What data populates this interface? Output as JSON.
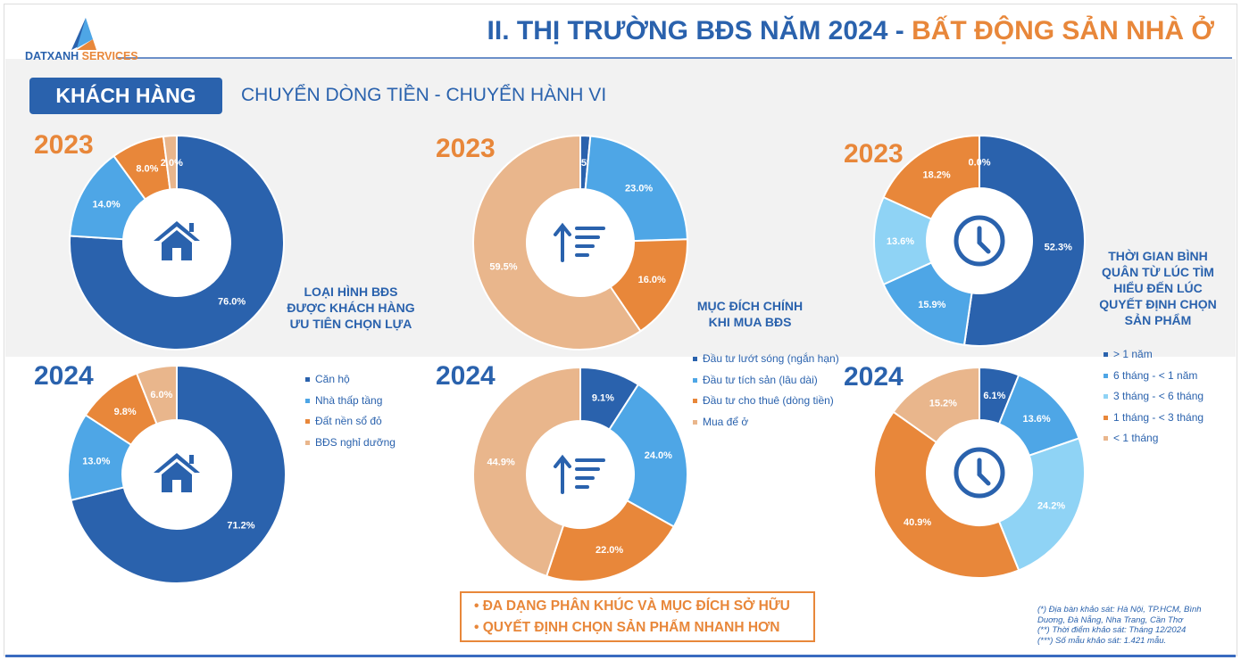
{
  "header": {
    "title_main": "II. THỊ TRƯỜNG BĐS NĂM 2024 - ",
    "title_accent": "BẤT ĐỘNG SẢN NHÀ Ở",
    "logo_part1": "DATXANH",
    "logo_part2": " SERVICES"
  },
  "section": {
    "button": "KHÁCH HÀNG",
    "subtitle": "CHUYỂN DÒNG TIỀN - CHUYỂN HÀNH VI"
  },
  "colors": {
    "dark_blue": "#2a62ad",
    "mid_blue": "#4ea6e6",
    "light_blue": "#8fd3f5",
    "orange": "#e8873a",
    "peach": "#e9b68c"
  },
  "chart_data": [
    {
      "type": "pie",
      "id": "type2023",
      "year": "2023",
      "title": "LOẠI HÌNH BĐS ĐƯỢC KHÁCH HÀNG ƯU TIÊN CHỌN LỰA",
      "categories": [
        "Căn hộ",
        "Nhà thấp tầng",
        "Đất nền sổ đỏ",
        "BĐS nghỉ dưỡng"
      ],
      "values": [
        76.0,
        14.0,
        8.0,
        2.0
      ],
      "labels": [
        "76.0%",
        "14.0%",
        "8.0%",
        "2.0%"
      ]
    },
    {
      "type": "pie",
      "id": "type2024",
      "year": "2024",
      "categories": [
        "Căn hộ",
        "Nhà thấp tầng",
        "Đất nền sổ đỏ",
        "BĐS nghỉ dưỡng"
      ],
      "values": [
        71.2,
        13.0,
        9.8,
        6.0
      ],
      "labels": [
        "71.2%",
        "13.0%",
        "9.8%",
        "6.0%"
      ]
    },
    {
      "type": "pie",
      "id": "purpose2023",
      "year": "2023",
      "title": "MỤC ĐÍCH CHÍNH KHI MUA BĐS",
      "categories": [
        "Đầu tư lướt sóng (ngắn hạn)",
        "Đầu tư tích sản (lâu dài)",
        "Đầu tư cho thuê (dòng tiền)",
        "Mua để ở"
      ],
      "values": [
        1.5,
        23.0,
        16.0,
        59.5
      ],
      "labels": [
        "1.5%",
        "23.0%",
        "16.0%",
        "59.5%"
      ]
    },
    {
      "type": "pie",
      "id": "purpose2024",
      "year": "2024",
      "categories": [
        "Đầu tư lướt sóng (ngắn hạn)",
        "Đầu tư tích sản (lâu dài)",
        "Đầu tư cho thuê (dòng tiền)",
        "Mua để ở"
      ],
      "values": [
        9.1,
        24.0,
        22.0,
        44.9
      ],
      "labels": [
        "9.1%",
        "24.0%",
        "22.0%",
        "44.9%"
      ]
    },
    {
      "type": "pie",
      "id": "time2023",
      "year": "2023",
      "title": "THỜI GIAN BÌNH QUÂN TỪ LÚC TÌM HIỂU ĐẾN LÚC QUYẾT ĐỊNH CHỌN SẢN PHẨM",
      "categories": [
        "> 1 năm",
        "6 tháng - < 1 năm",
        "3 tháng - < 6 tháng",
        "1 tháng - < 3 tháng",
        "< 1 tháng"
      ],
      "values": [
        52.3,
        15.9,
        13.6,
        18.2,
        0.0
      ],
      "labels": [
        "52.3%",
        "15.9%",
        "13.6%",
        "18.2%",
        "0.0%"
      ]
    },
    {
      "type": "pie",
      "id": "time2024",
      "year": "2024",
      "categories": [
        "> 1 năm",
        "6 tháng - < 1 năm",
        "3 tháng - < 6 tháng",
        "1 tháng - < 3 tháng",
        "< 1 tháng"
      ],
      "values": [
        6.1,
        13.6,
        24.2,
        40.9,
        15.2
      ],
      "labels": [
        "6.1%",
        "13.6%",
        "24.2%",
        "40.9%",
        "15.2%"
      ]
    }
  ],
  "conclusions": [
    "•   ĐA DẠNG PHÂN KHÚC VÀ MỤC ĐÍCH SỞ HỮU",
    "•   QUYẾT ĐỊNH CHỌN SẢN PHẨM NHANH HƠN"
  ],
  "notes": [
    "(*) Địa bàn khảo sát: Hà Nội, TP.HCM, Bình",
    "Duơng, Đà Nẵng, Nha Trang, Cần Thơ",
    " (**) Thời điểm khảo sát: Tháng 12/2024",
    "(***) Số mẫu khảo sát: 1.421 mẫu."
  ]
}
